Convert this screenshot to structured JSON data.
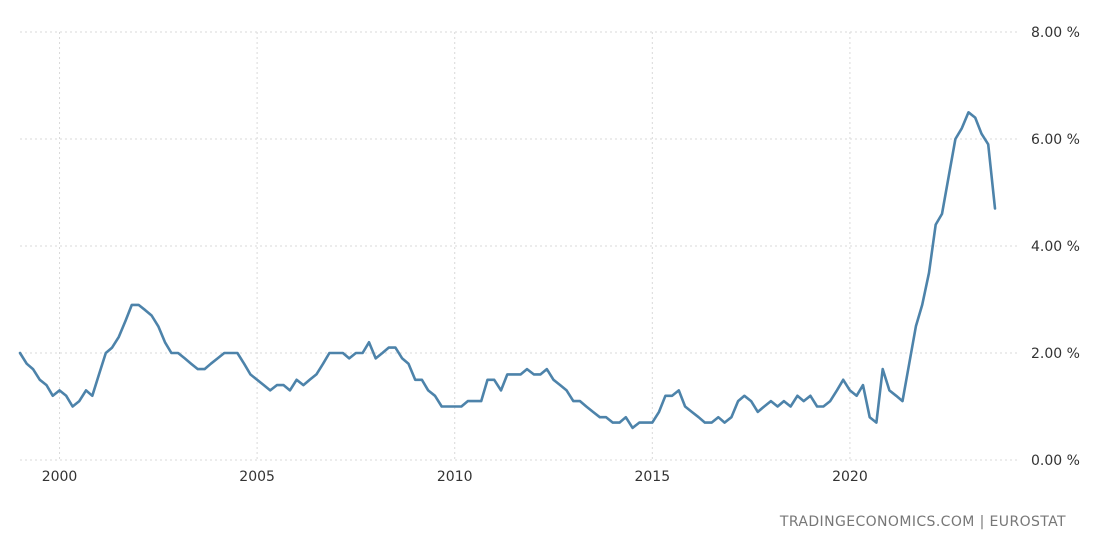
{
  "chart_data": {
    "type": "line",
    "title": "",
    "xlabel": "",
    "ylabel": "",
    "series": [
      {
        "color": "#4d83aa",
        "x": [
          1999.0,
          1999.17,
          1999.33,
          1999.5,
          1999.67,
          1999.83,
          2000.0,
          2000.17,
          2000.33,
          2000.5,
          2000.67,
          2000.83,
          2001.0,
          2001.17,
          2001.33,
          2001.5,
          2001.67,
          2001.83,
          2002.0,
          2002.17,
          2002.33,
          2002.5,
          2002.67,
          2002.83,
          2003.0,
          2003.17,
          2003.33,
          2003.5,
          2003.67,
          2003.83,
          2004.0,
          2004.17,
          2004.33,
          2004.5,
          2004.67,
          2004.83,
          2005.0,
          2005.17,
          2005.33,
          2005.5,
          2005.67,
          2005.83,
          2006.0,
          2006.17,
          2006.33,
          2006.5,
          2006.67,
          2006.83,
          2007.0,
          2007.17,
          2007.33,
          2007.5,
          2007.67,
          2007.83,
          2008.0,
          2008.17,
          2008.33,
          2008.5,
          2008.67,
          2008.83,
          2009.0,
          2009.17,
          2009.33,
          2009.5,
          2009.67,
          2009.83,
          2010.0,
          2010.17,
          2010.33,
          2010.5,
          2010.67,
          2010.83,
          2011.0,
          2011.17,
          2011.33,
          2011.5,
          2011.67,
          2011.83,
          2012.0,
          2012.17,
          2012.33,
          2012.5,
          2012.67,
          2012.83,
          2013.0,
          2013.17,
          2013.33,
          2013.5,
          2013.67,
          2013.83,
          2014.0,
          2014.17,
          2014.33,
          2014.5,
          2014.67,
          2014.83,
          2015.0,
          2015.17,
          2015.33,
          2015.5,
          2015.67,
          2015.83,
          2016.0,
          2016.17,
          2016.33,
          2016.5,
          2016.67,
          2016.83,
          2017.0,
          2017.17,
          2017.33,
          2017.5,
          2017.67,
          2017.83,
          2018.0,
          2018.17,
          2018.33,
          2018.5,
          2018.67,
          2018.83,
          2019.0,
          2019.17,
          2019.33,
          2019.5,
          2019.67,
          2019.83,
          2020.0,
          2020.17,
          2020.33,
          2020.5,
          2020.67,
          2020.83,
          2021.0,
          2021.17,
          2021.33,
          2021.5,
          2021.67,
          2021.83,
          2022.0,
          2022.17,
          2022.33,
          2022.5,
          2022.67,
          2022.83,
          2023.0,
          2023.17,
          2023.33,
          2023.5,
          2023.67
        ],
        "y": [
          2.0,
          1.8,
          1.7,
          1.5,
          1.4,
          1.2,
          1.3,
          1.2,
          1.0,
          1.1,
          1.3,
          1.2,
          1.6,
          2.0,
          2.1,
          2.3,
          2.6,
          2.9,
          2.9,
          2.8,
          2.7,
          2.5,
          2.2,
          2.0,
          2.0,
          1.9,
          1.8,
          1.7,
          1.7,
          1.8,
          1.9,
          2.0,
          2.0,
          2.0,
          1.8,
          1.6,
          1.5,
          1.4,
          1.3,
          1.4,
          1.4,
          1.3,
          1.5,
          1.4,
          1.5,
          1.6,
          1.8,
          2.0,
          2.0,
          2.0,
          1.9,
          2.0,
          2.0,
          2.2,
          1.9,
          2.0,
          2.1,
          2.1,
          1.9,
          1.8,
          1.5,
          1.5,
          1.3,
          1.2,
          1.0,
          1.0,
          1.0,
          1.0,
          1.1,
          1.1,
          1.1,
          1.5,
          1.5,
          1.3,
          1.6,
          1.6,
          1.6,
          1.7,
          1.6,
          1.6,
          1.7,
          1.5,
          1.4,
          1.3,
          1.1,
          1.1,
          1.0,
          0.9,
          0.8,
          0.8,
          0.7,
          0.7,
          0.8,
          0.6,
          0.7,
          0.7,
          0.7,
          0.9,
          1.2,
          1.2,
          1.3,
          1.0,
          0.9,
          0.8,
          0.7,
          0.7,
          0.8,
          0.7,
          0.8,
          1.1,
          1.2,
          1.1,
          0.9,
          1.0,
          1.1,
          1.0,
          1.1,
          1.0,
          1.2,
          1.1,
          1.2,
          1.0,
          1.0,
          1.1,
          1.3,
          1.5,
          1.3,
          1.2,
          1.4,
          0.8,
          0.7,
          1.7,
          1.3,
          1.2,
          1.1,
          1.8,
          2.5,
          2.9,
          3.5,
          4.4,
          4.6,
          5.3,
          6.0,
          6.2,
          6.5,
          6.4,
          6.1,
          5.9,
          4.7
        ]
      }
    ],
    "xlim": [
      1999.0,
      2024.0
    ],
    "ylim": [
      0.0,
      8.0
    ],
    "x_ticks": [
      2000,
      2005,
      2010,
      2015,
      2020
    ],
    "x_tick_labels": [
      "2000",
      "2005",
      "2010",
      "2015",
      "2020"
    ],
    "y_ticks": [
      0,
      2,
      4,
      6,
      8
    ],
    "y_tick_labels": [
      "0.00 %",
      "2.00 %",
      "4.00 %",
      "6.00 %",
      "8.00 %"
    ],
    "y_axis_position": "right",
    "grid": true,
    "legend": "none",
    "source_text": "TRADINGECONOMICS.COM | EUROSTAT"
  }
}
